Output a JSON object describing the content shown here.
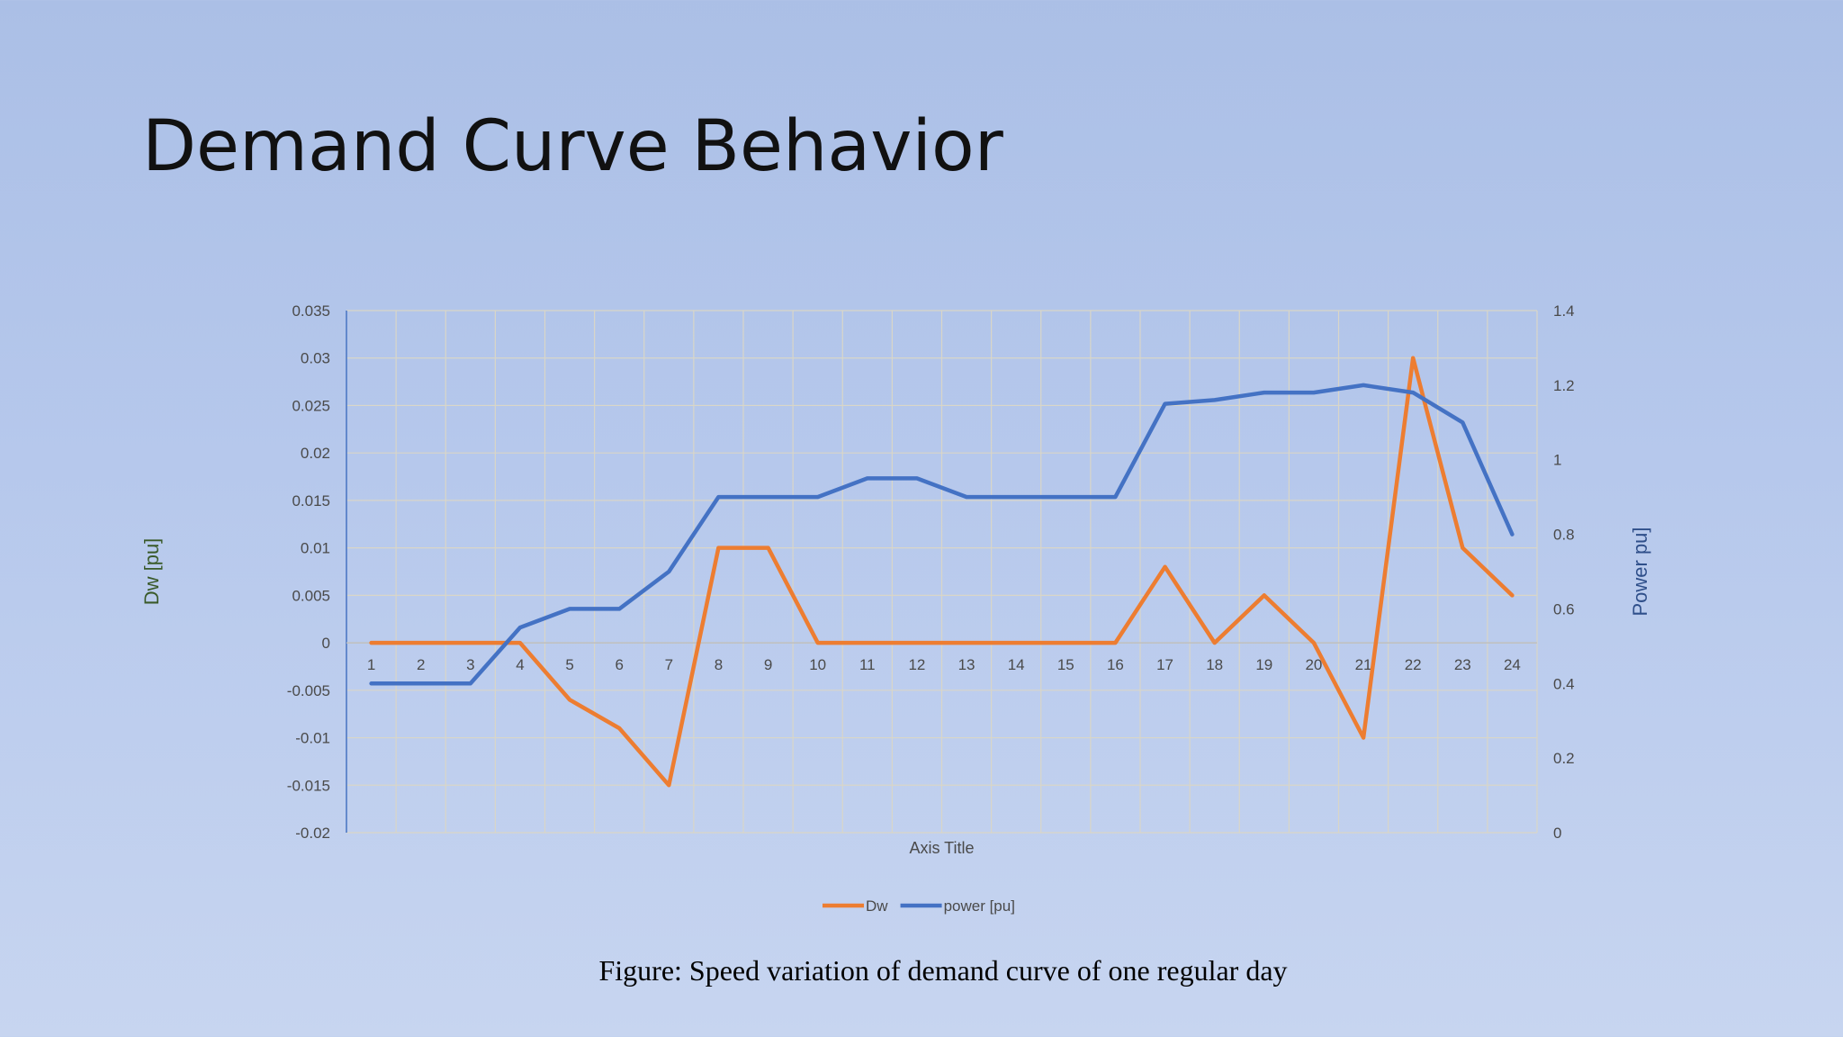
{
  "slide": {
    "title": "Demand Curve Behavior",
    "caption": "Figure: Speed variation of demand curve of one regular day"
  },
  "chart_data": {
    "type": "line",
    "x": [
      1,
      2,
      3,
      4,
      5,
      6,
      7,
      8,
      9,
      10,
      11,
      12,
      13,
      14,
      15,
      16,
      17,
      18,
      19,
      20,
      21,
      22,
      23,
      24
    ],
    "xlabel": "Axis Title",
    "ylabel": "Dw [pu]",
    "y2label": "Power pu]",
    "ylim": [
      -0.02,
      0.035
    ],
    "ytick_step": 0.005,
    "y2lim": [
      0,
      1.4
    ],
    "y2tick_step": 0.2,
    "grid": true,
    "legend_position": "bottom",
    "series": [
      {
        "name": "Dw",
        "axis": "left",
        "color": "#ed7d31",
        "values": [
          0,
          0,
          0,
          0,
          -0.006,
          -0.009,
          -0.015,
          0.01,
          0.01,
          0,
          0,
          0,
          0,
          0,
          0,
          0,
          0.008,
          0,
          0.005,
          0,
          -0.01,
          0.03,
          0.01,
          0.005
        ]
      },
      {
        "name": "power [pu]",
        "axis": "right",
        "color": "#4472c4",
        "values": [
          0.4,
          0.4,
          0.4,
          0.55,
          0.6,
          0.6,
          0.7,
          0.9,
          0.9,
          0.9,
          0.95,
          0.95,
          0.9,
          0.9,
          0.9,
          0.9,
          1.15,
          1.16,
          1.18,
          1.18,
          1.2,
          1.18,
          1.1,
          0.8
        ]
      }
    ]
  }
}
